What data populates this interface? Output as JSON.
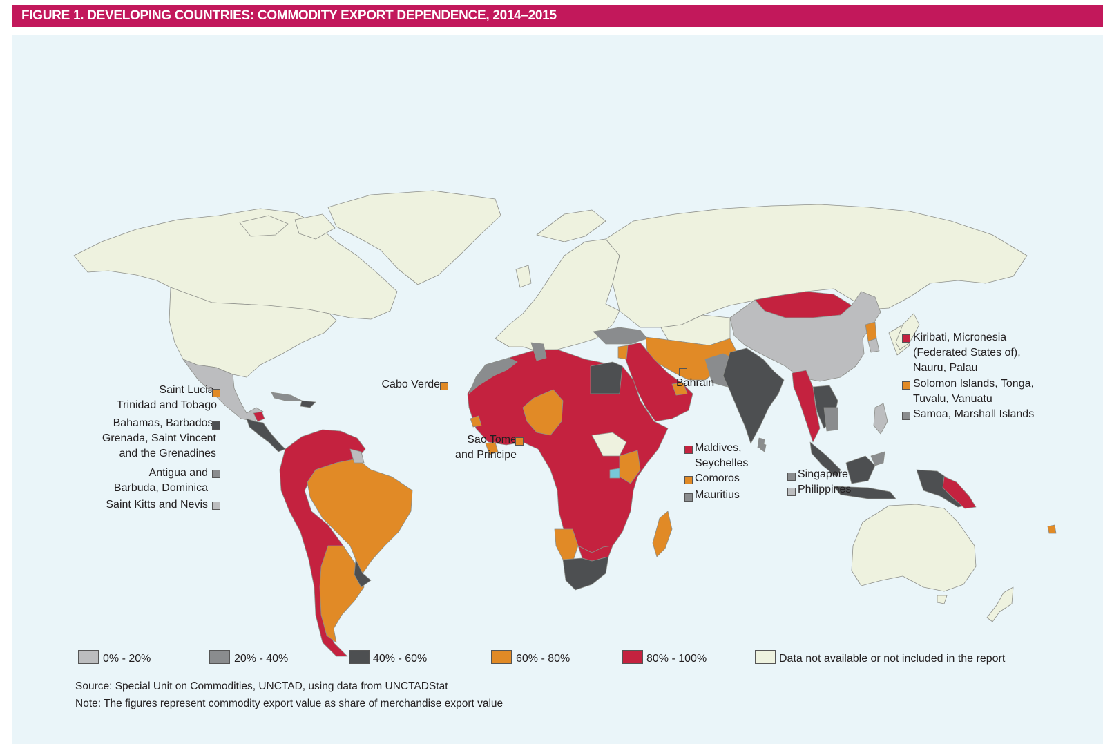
{
  "title": "FIGURE 1. DEVELOPING COUNTRIES: COMMODITY EXPORT DEPENDENCE, 2014–2015",
  "colors": {
    "c0_20": "#bcbdbf",
    "c20_40": "#8a8c8e",
    "c40_60": "#4d4f51",
    "c60_80": "#e18a26",
    "c80_100": "#c4223f",
    "na": "#eef2df",
    "ocean": "#eaf5f9",
    "title_bg": "#c2185b"
  },
  "labels": {
    "saint_lucia": "Saint Lucia,\nTrinidad and Tobago",
    "bahamas": "Bahamas, Barbados,\nGrenada, Saint Vincent\nand the Grenadines",
    "antigua": "Antigua and\nBarbuda, Dominica",
    "saint_kitts": "Saint Kitts and Nevis",
    "cabo_verde": "Cabo Verde",
    "sao_tome": "Sao Tome\nand Principe",
    "bahrain": "Bahrain",
    "maldives": "Maldives,\nSeychelles",
    "comoros": "Comoros",
    "mauritius": "Mauritius",
    "singapore": "Singapore",
    "philippines": "Philippines",
    "kiribati": "Kiribati, Micronesia\n(Federated States of),\nNauru, Palau",
    "solomon": "Solomon Islands, Tonga,\nTuvalu, Vanuatu",
    "samoa": "Samoa, Marshall Islands"
  },
  "legend": [
    {
      "label": "0% - 20%",
      "color": "#bcbdbf"
    },
    {
      "label": "20% - 40%",
      "color": "#8a8c8e"
    },
    {
      "label": "40% - 60%",
      "color": "#4d4f51"
    },
    {
      "label": "60% - 80%",
      "color": "#e18a26"
    },
    {
      "label": "80% - 100%",
      "color": "#c4223f"
    },
    {
      "label": "Data not available or not included in the report",
      "color": "#eef2df"
    }
  ],
  "source": "Source: Special Unit on Commodities, UNCTAD, using data from UNCTADStat",
  "note": "Note: The figures represent commodity export value as share of merchandise export value"
}
